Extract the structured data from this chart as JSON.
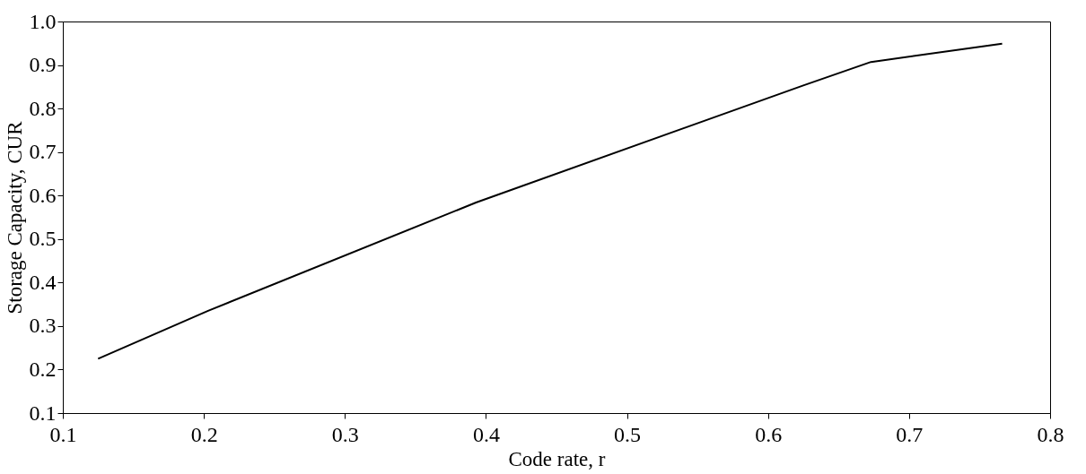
{
  "chart_data": {
    "type": "line",
    "xlabel": "Code rate, r",
    "ylabel": "Storage Capacity, CUR",
    "x": [
      0.125,
      0.203,
      0.393,
      0.625,
      0.673,
      0.766
    ],
    "series": [
      {
        "color": "#000000",
        "values": [
          0.225,
          0.335,
          0.584,
          0.853,
          0.907,
          0.949
        ]
      }
    ],
    "xlim": [
      0.1,
      0.8
    ],
    "xticks": [
      0.1,
      0.2,
      0.3,
      0.4,
      0.5,
      0.6,
      0.7,
      0.8
    ],
    "ylim": [
      0.1,
      1.0
    ],
    "yticks": [
      0.1,
      0.2,
      0.3,
      0.4,
      0.5,
      0.6,
      0.7,
      0.8,
      0.9,
      {
        "value": 1.0,
        "label": "1.0"
      }
    ],
    "grid": false,
    "marker": "none",
    "line_style": "solid"
  }
}
